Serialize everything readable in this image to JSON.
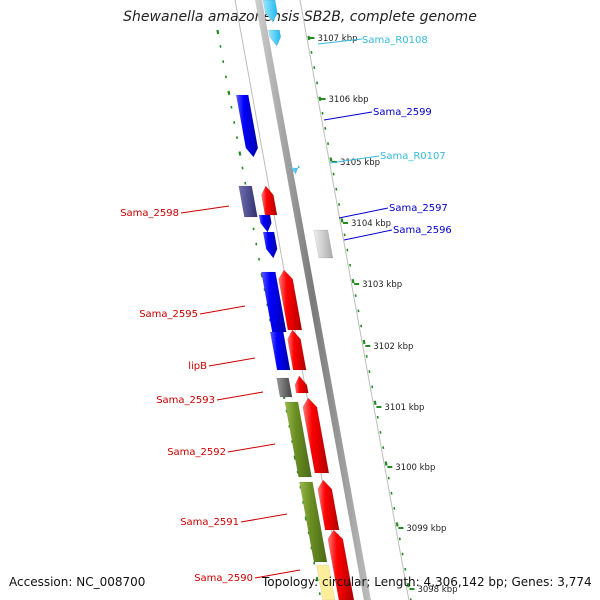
{
  "title": "Shewanella amazonensis SB2B, complete genome",
  "footer": {
    "accession": "Accession: NC_008700",
    "summary": "Topology: circular; Length: 4,306,142 bp; Genes: 3,774"
  },
  "scale_labels": [
    "3107 kbp",
    "3106 kbp",
    "3105 kbp",
    "3104 kbp",
    "3103 kbp",
    "3102 kbp",
    "3101 kbp",
    "3100 kbp",
    "3099 kbp",
    "3098 kbp"
  ],
  "colors": {
    "plus_strand": "#ff0000",
    "minus_strand": "#0000ff",
    "rna": "#33ccff",
    "pseudo_grey": "#666666",
    "olive": "#6b8e23",
    "tick_green": "#228b22"
  },
  "gene_labels": [
    {
      "text": "Sama_R0108",
      "color": "#33bbdd"
    },
    {
      "text": "Sama_2599",
      "color": "#0000cc"
    },
    {
      "text": "Sama_R0107",
      "color": "#33bbdd"
    },
    {
      "text": "Sama_2597",
      "color": "#0000cc"
    },
    {
      "text": "Sama_2596",
      "color": "#0000cc"
    },
    {
      "text": "Sama_2598",
      "color": "#cc0000"
    },
    {
      "text": "Sama_2595",
      "color": "#cc0000"
    },
    {
      "text": "lipB",
      "color": "#cc0000"
    },
    {
      "text": "Sama_2593",
      "color": "#cc0000"
    },
    {
      "text": "Sama_2592",
      "color": "#cc0000"
    },
    {
      "text": "Sama_2591",
      "color": "#cc0000"
    },
    {
      "text": "Sama_2590",
      "color": "#cc0000"
    }
  ]
}
